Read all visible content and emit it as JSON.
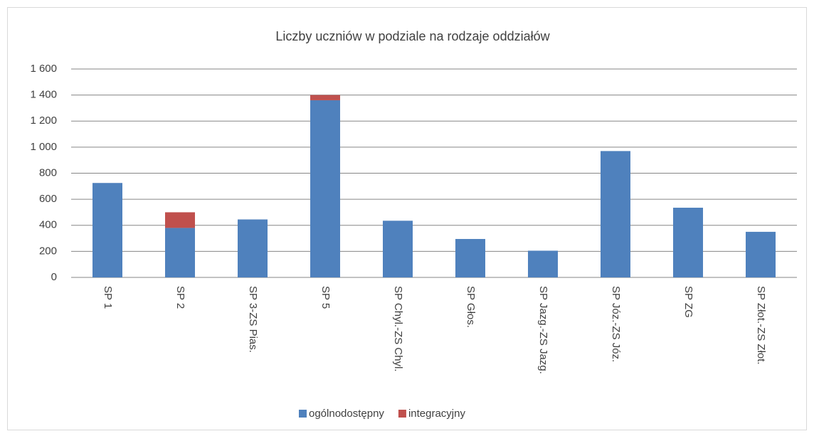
{
  "chart_data": {
    "type": "stacked_bar",
    "title": "Liczby uczniów w podziale na rodzaje oddziałów",
    "categories": [
      "SP 1",
      "SP 2",
      "SP 3-ZS Pias.",
      "SP 5",
      "SP Chyl.-ZS Chyl.",
      "SP Głos.",
      "SP Jazg.-ZS Jazg.",
      "SP Józ.-ZS Józ.",
      "SP ZG",
      "SP Złot.-ZS Złot."
    ],
    "series": [
      {
        "name": "ogólnodostępny",
        "color": "#4f81bd",
        "values": [
          725,
          380,
          445,
          1360,
          435,
          295,
          205,
          970,
          535,
          350
        ]
      },
      {
        "name": "integracyjny",
        "color": "#c0504d",
        "values": [
          0,
          120,
          0,
          40,
          0,
          0,
          0,
          0,
          0,
          0
        ]
      }
    ],
    "ylim": [
      0,
      1600
    ],
    "yticks": [
      0,
      200,
      400,
      600,
      800,
      {
        "value": 1000,
        "label": "1 000"
      },
      {
        "value": 1200,
        "label": "1 200"
      },
      {
        "value": 1400,
        "label": "1 400"
      },
      {
        "value": 1600,
        "label": "1 600"
      }
    ],
    "grid": true,
    "legend": "bottom"
  }
}
